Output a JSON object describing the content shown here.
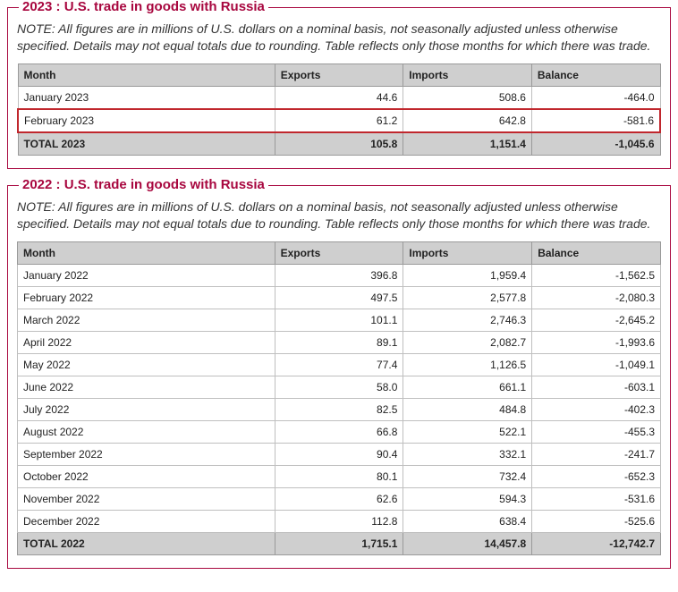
{
  "note_text": "NOTE: All figures are in millions of U.S. dollars on a nominal basis, not seasonally adjusted unless otherwise specified. Details may not equal totals due to rounding. Table reflects only those months for which there was trade.",
  "columns": [
    "Month",
    "Exports",
    "Imports",
    "Balance"
  ],
  "tables": [
    {
      "title": "2023 : U.S. trade in goods with Russia",
      "rows": [
        {
          "month": "January 2023",
          "exports": "44.6",
          "imports": "508.6",
          "balance": "-464.0",
          "highlighted": false
        },
        {
          "month": "February 2023",
          "exports": "61.2",
          "imports": "642.8",
          "balance": "-581.6",
          "highlighted": true
        }
      ],
      "total": {
        "month": "TOTAL 2023",
        "exports": "105.8",
        "imports": "1,151.4",
        "balance": "-1,045.6"
      }
    },
    {
      "title": "2022 : U.S. trade in goods with Russia",
      "rows": [
        {
          "month": "January 2022",
          "exports": "396.8",
          "imports": "1,959.4",
          "balance": "-1,562.5"
        },
        {
          "month": "February 2022",
          "exports": "497.5",
          "imports": "2,577.8",
          "balance": "-2,080.3"
        },
        {
          "month": "March 2022",
          "exports": "101.1",
          "imports": "2,746.3",
          "balance": "-2,645.2"
        },
        {
          "month": "April 2022",
          "exports": "89.1",
          "imports": "2,082.7",
          "balance": "-1,993.6"
        },
        {
          "month": "May 2022",
          "exports": "77.4",
          "imports": "1,126.5",
          "balance": "-1,049.1"
        },
        {
          "month": "June 2022",
          "exports": "58.0",
          "imports": "661.1",
          "balance": "-603.1"
        },
        {
          "month": "July 2022",
          "exports": "82.5",
          "imports": "484.8",
          "balance": "-402.3"
        },
        {
          "month": "August 2022",
          "exports": "66.8",
          "imports": "522.1",
          "balance": "-455.3"
        },
        {
          "month": "September 2022",
          "exports": "90.4",
          "imports": "332.1",
          "balance": "-241.7"
        },
        {
          "month": "October 2022",
          "exports": "80.1",
          "imports": "732.4",
          "balance": "-652.3"
        },
        {
          "month": "November 2022",
          "exports": "62.6",
          "imports": "594.3",
          "balance": "-531.6"
        },
        {
          "month": "December 2022",
          "exports": "112.8",
          "imports": "638.4",
          "balance": "-525.6"
        }
      ],
      "total": {
        "month": "TOTAL 2022",
        "exports": "1,715.1",
        "imports": "14,457.8",
        "balance": "-12,742.7"
      }
    }
  ],
  "colors": {
    "accent": "#a8073f",
    "highlight_border": "#c0272d",
    "header_bg": "#cfcfcf",
    "cell_border": "#bfbfbf"
  }
}
